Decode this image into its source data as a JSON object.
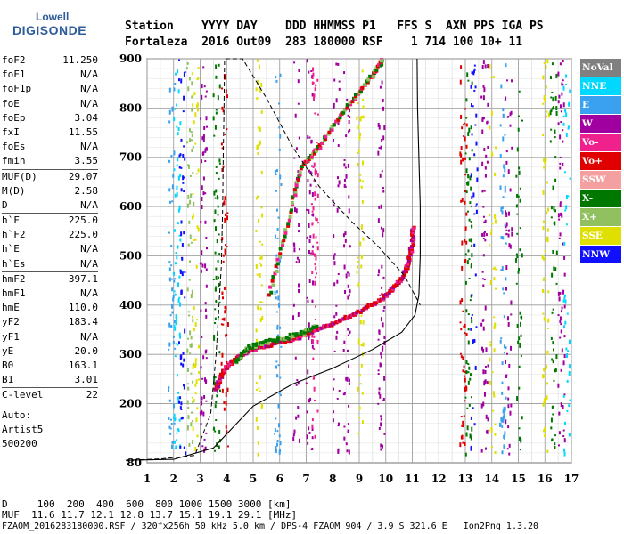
{
  "logo": {
    "top": "Lowell",
    "main": "DIGISONDE"
  },
  "header": {
    "line1": "Station    YYYY DAY    DDD HHMMSS P1   FFS S  AXN PPS IGA PS",
    "line2": "Fortaleza  2016 Out09  283 180000 RSF    1 714 100 10+ 11"
  },
  "params": [
    {
      "label": "foF2",
      "value": "11.250"
    },
    {
      "label": "foF1",
      "value": "N/A"
    },
    {
      "label": "foF1p",
      "value": "N/A"
    },
    {
      "label": "foE",
      "value": "N/A"
    },
    {
      "label": "foEp",
      "value": "3.04"
    },
    {
      "label": "fxI",
      "value": "11.55"
    },
    {
      "label": "foEs",
      "value": "N/A"
    },
    {
      "label": "fmin",
      "value": "3.55"
    },
    {
      "label": "MUF(D)",
      "value": "29.07",
      "sep": true
    },
    {
      "label": "M(D)",
      "value": "2.58"
    },
    {
      "label": "D",
      "value": "N/A"
    },
    {
      "label": "h`F",
      "value": "225.0",
      "sep": true
    },
    {
      "label": "h`F2",
      "value": "225.0"
    },
    {
      "label": "h`E",
      "value": "N/A"
    },
    {
      "label": "h`Es",
      "value": "N/A"
    },
    {
      "label": "hmF2",
      "value": "397.1",
      "sep": true
    },
    {
      "label": "hmF1",
      "value": "N/A"
    },
    {
      "label": "hmE",
      "value": "110.0"
    },
    {
      "label": "yF2",
      "value": "183.4"
    },
    {
      "label": "yF1",
      "value": "N/A"
    },
    {
      "label": "yE",
      "value": "20.0"
    },
    {
      "label": "B0",
      "value": "163.1"
    },
    {
      "label": "B1",
      "value": "3.01"
    },
    {
      "label": "C-level",
      "value": "22",
      "sep": true
    }
  ],
  "auto": [
    "Auto:",
    "Artist5",
    "500200"
  ],
  "legend": [
    {
      "label": "NoVal",
      "color": "#808080"
    },
    {
      "label": "NNE",
      "color": "#00d8ff"
    },
    {
      "label": "E",
      "color": "#3aa0f0"
    },
    {
      "label": "W",
      "color": "#a000a0"
    },
    {
      "label": "Vo-",
      "color": "#f0208c"
    },
    {
      "label": "Vo+",
      "color": "#e00000"
    },
    {
      "label": "SSW",
      "color": "#f4a0a0"
    },
    {
      "label": "X-",
      "color": "#007800"
    },
    {
      "label": "X+",
      "color": "#90c060"
    },
    {
      "label": "SSE",
      "color": "#e0e000"
    },
    {
      "label": "NNW",
      "color": "#1010ff"
    }
  ],
  "footer": {
    "d_row": "D     100  200  400  600  800 1000 1500 3000 [km]",
    "muf_row": "MUF  11.6 11.7 12.1 12.8 13.7 15.1 19.1 29.1 [MHz]",
    "info_row": "FZAOM_2016283180000.RSF / 320fx256h 50 kHz 5.0 km / DPS-4 FZAOM 904 / 3.9 S 321.6 E   Ion2Png 1.3.20"
  },
  "chart_data": {
    "type": "scatter",
    "xlim": [
      1,
      17
    ],
    "ylim": [
      80,
      900
    ],
    "x_ticks": [
      1,
      2,
      3,
      4,
      5,
      6,
      7,
      8,
      9,
      10,
      11,
      12,
      13,
      14,
      15,
      16,
      17
    ],
    "y_ticks": [
      80,
      200,
      300,
      400,
      500,
      600,
      700,
      800,
      900
    ],
    "grid": true,
    "legend_position": "right",
    "ordinary_trace": [
      [
        3.6,
        228
      ],
      [
        3.75,
        250
      ],
      [
        3.9,
        268
      ],
      [
        4.2,
        285
      ],
      [
        4.6,
        300
      ],
      [
        5.0,
        310
      ],
      [
        5.6,
        318
      ],
      [
        6.2,
        326
      ],
      [
        6.8,
        336
      ],
      [
        7.4,
        350
      ],
      [
        8.0,
        362
      ],
      [
        8.6,
        376
      ],
      [
        9.2,
        392
      ],
      [
        9.8,
        410
      ],
      [
        10.2,
        428
      ],
      [
        10.5,
        446
      ],
      [
        10.75,
        470
      ],
      [
        10.9,
        495
      ],
      [
        11.0,
        525
      ],
      [
        11.05,
        560
      ]
    ],
    "ordinary_upper": [
      [
        5.6,
        420
      ],
      [
        6.1,
        520
      ],
      [
        6.5,
        615
      ],
      [
        6.9,
        685
      ],
      [
        7.2,
        700
      ],
      [
        7.6,
        730
      ],
      [
        8.2,
        778
      ],
      [
        8.8,
        820
      ],
      [
        9.3,
        852
      ],
      [
        9.7,
        880
      ],
      [
        9.9,
        898
      ]
    ],
    "extraordinary_trace": [
      [
        4.3,
        282
      ],
      [
        4.8,
        312
      ],
      [
        5.3,
        322
      ],
      [
        6.0,
        330
      ],
      [
        6.8,
        342
      ],
      [
        7.4,
        358
      ]
    ],
    "profile_solid": [
      [
        0.2,
        85
      ],
      [
        2.0,
        87
      ],
      [
        3.5,
        110
      ],
      [
        5.0,
        195
      ],
      [
        6.5,
        240
      ],
      [
        8.0,
        272
      ],
      [
        9.5,
        310
      ],
      [
        10.6,
        345
      ],
      [
        11.1,
        380
      ],
      [
        11.25,
        420
      ],
      [
        11.3,
        500
      ],
      [
        11.3,
        600
      ],
      [
        11.25,
        700
      ],
      [
        11.2,
        800
      ],
      [
        11.18,
        900
      ]
    ],
    "profile_dashed": [
      [
        0.2,
        85
      ],
      [
        1.5,
        88
      ],
      [
        2.8,
        95
      ],
      [
        3.4,
        180
      ],
      [
        3.6,
        300
      ],
      [
        3.8,
        480
      ],
      [
        3.85,
        600
      ],
      [
        3.87,
        700
      ],
      [
        3.9,
        800
      ],
      [
        3.92,
        900
      ],
      [
        4.6,
        900
      ],
      [
        5.5,
        820
      ],
      [
        6.5,
        720
      ],
      [
        7.5,
        640
      ],
      [
        8.7,
        570
      ],
      [
        9.7,
        520
      ],
      [
        10.7,
        460
      ],
      [
        11.3,
        400
      ]
    ],
    "scatter_columns": [
      [
        1.9,
        "#3aa0f0"
      ],
      [
        2.1,
        "#00d8ff"
      ],
      [
        2.3,
        "#1010ff"
      ],
      [
        2.6,
        "#90c060"
      ],
      [
        2.8,
        "#e0e000"
      ],
      [
        3.1,
        "#a000a0"
      ],
      [
        3.6,
        "#007800"
      ],
      [
        3.9,
        "#e00000"
      ],
      [
        5.2,
        "#e0e000"
      ],
      [
        5.9,
        "#3aa0f0"
      ],
      [
        6.6,
        "#a000a0"
      ],
      [
        7.1,
        "#a000a0"
      ],
      [
        7.3,
        "#f0208c"
      ],
      [
        8.1,
        "#a000a0"
      ],
      [
        8.5,
        "#a000a0"
      ],
      [
        9.0,
        "#e0e000"
      ],
      [
        9.8,
        "#a000a0"
      ],
      [
        12.9,
        "#e00000"
      ],
      [
        13.1,
        "#007800"
      ],
      [
        13.3,
        "#1010ff"
      ],
      [
        13.7,
        "#a000a0"
      ],
      [
        14.0,
        "#e0e000"
      ],
      [
        14.4,
        "#3aa0f0"
      ],
      [
        14.6,
        "#a000a0"
      ],
      [
        15.0,
        "#007800"
      ],
      [
        16.0,
        "#e0e000"
      ],
      [
        16.3,
        "#007800"
      ],
      [
        16.6,
        "#a000a0"
      ],
      [
        16.8,
        "#00d8ff"
      ]
    ]
  }
}
